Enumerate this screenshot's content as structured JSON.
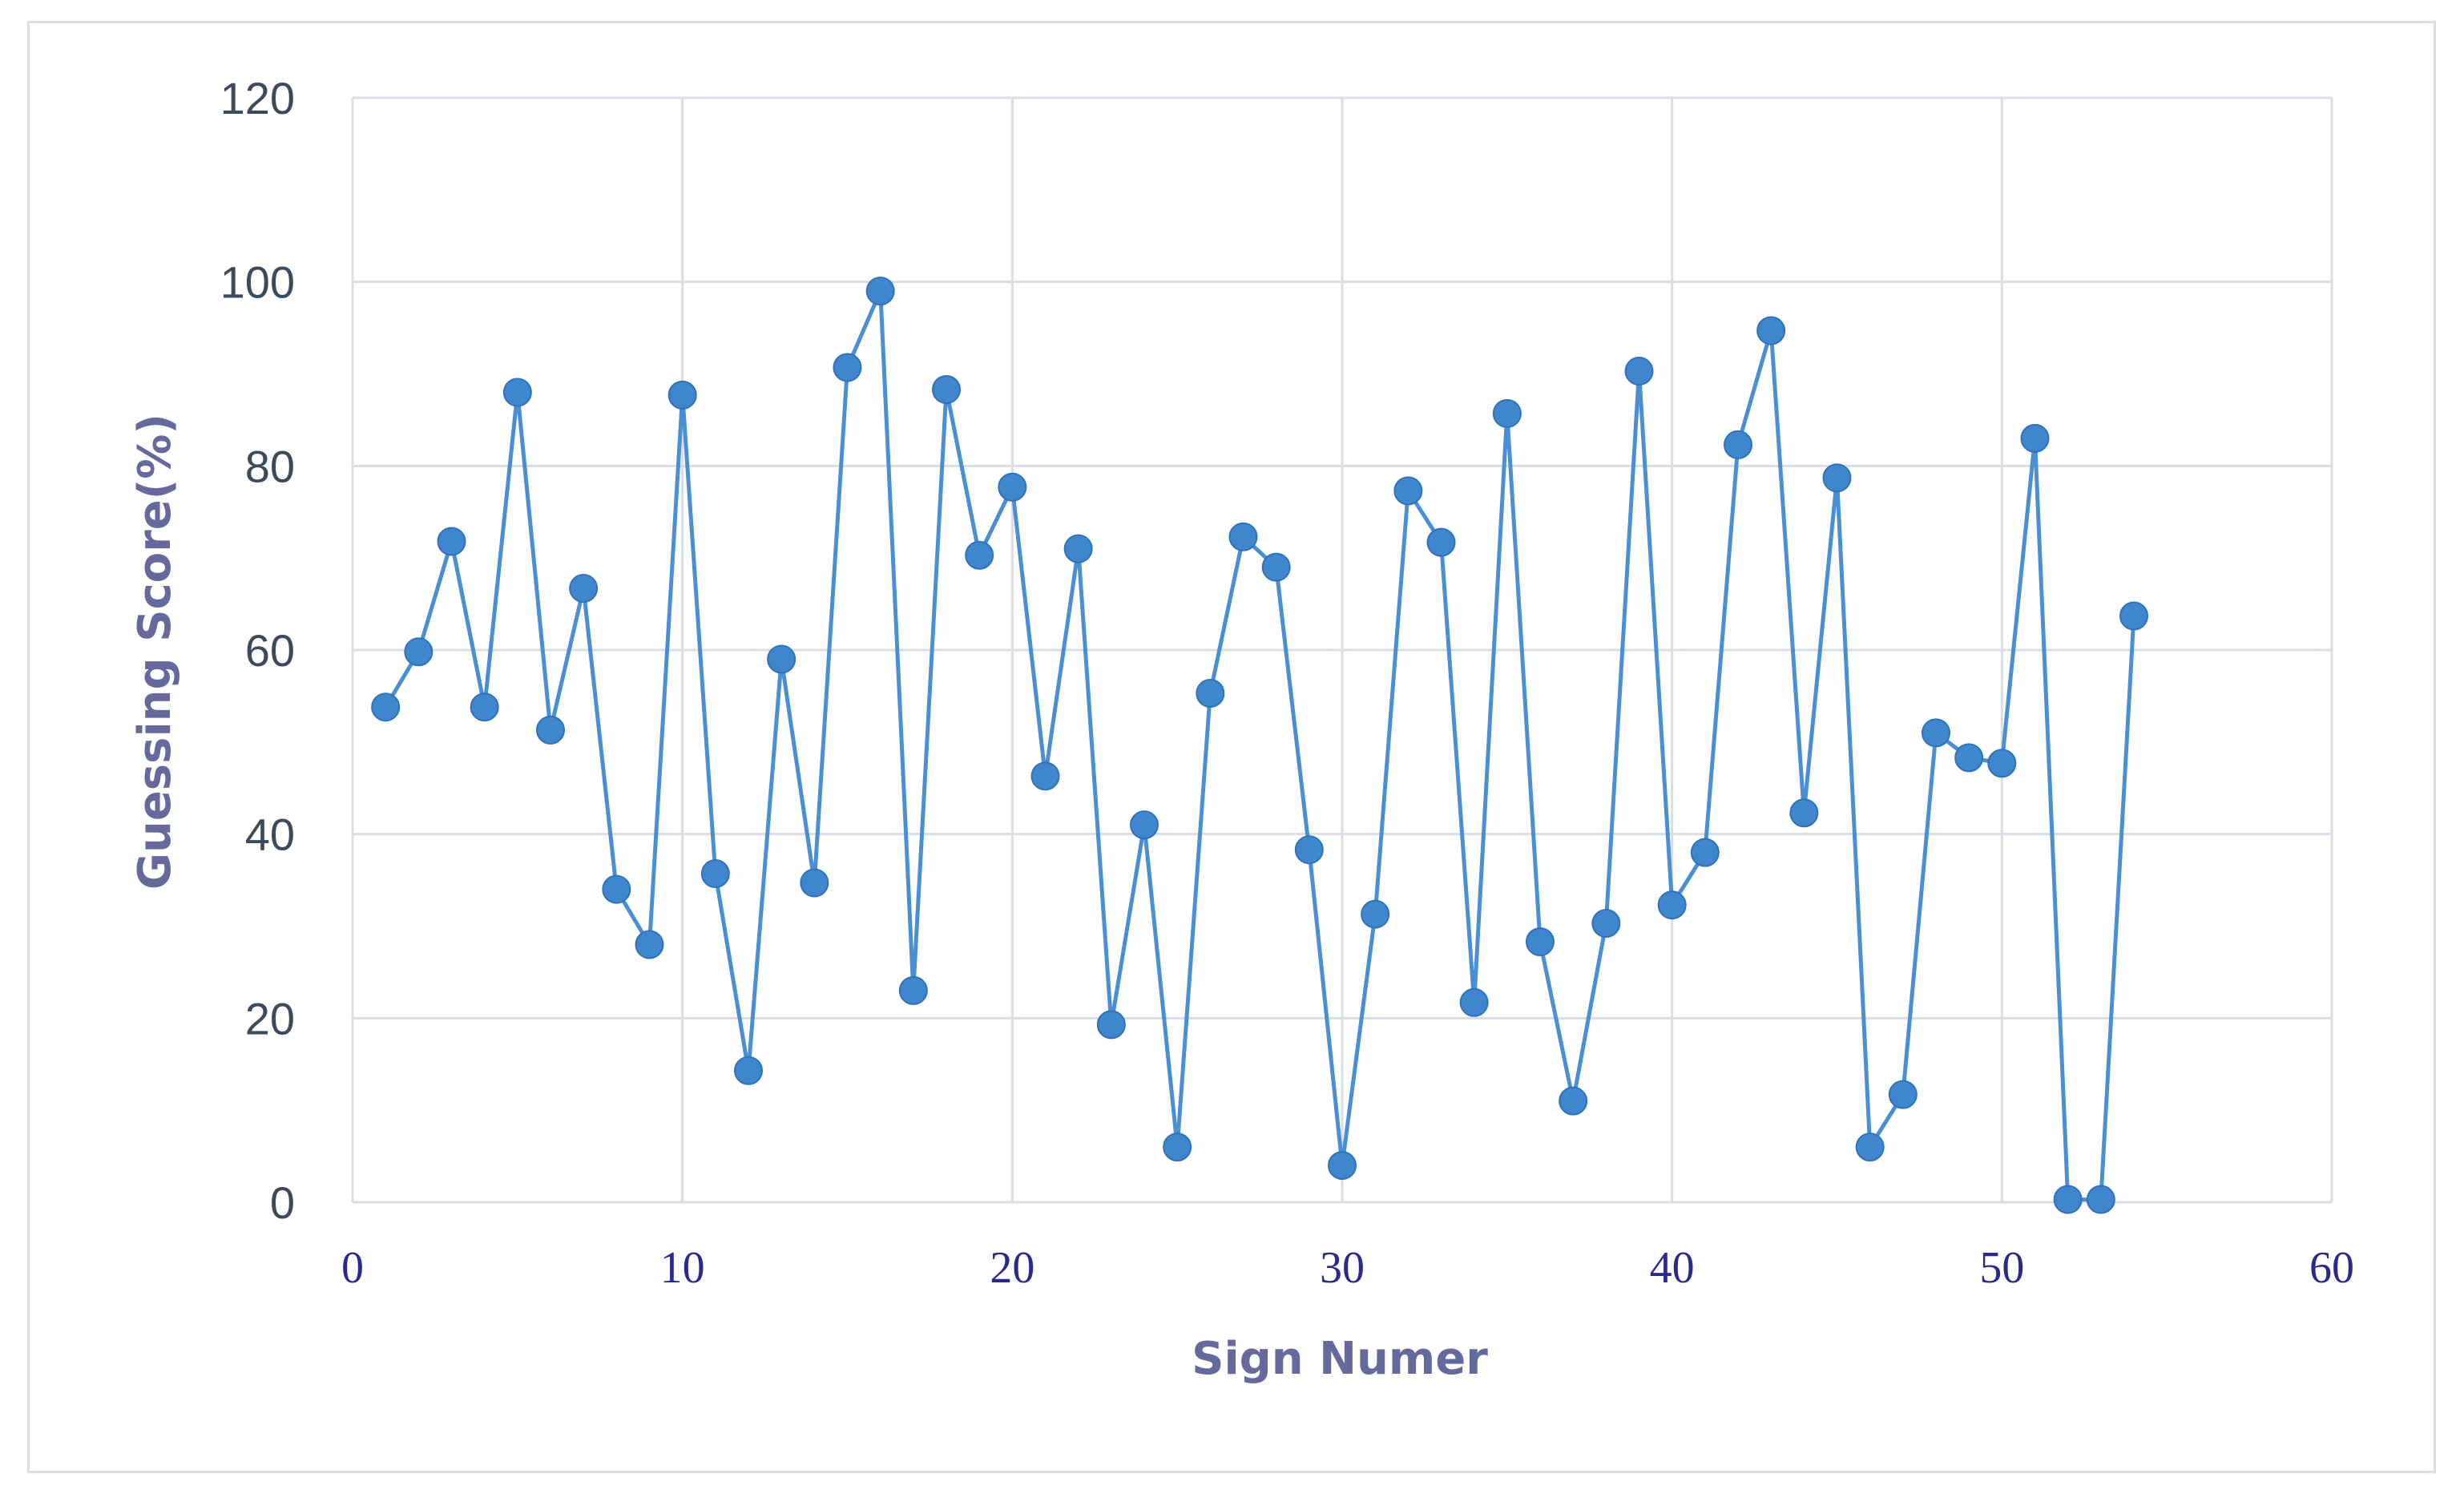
{
  "chart_data": {
    "type": "line",
    "xlabel": "Sign Numer",
    "ylabel": "Guessing  Score(%)",
    "xlim": [
      0,
      60
    ],
    "ylim": [
      0,
      120
    ],
    "xticks": [
      0,
      10,
      20,
      30,
      40,
      50,
      60
    ],
    "yticks": [
      0,
      20,
      40,
      60,
      80,
      100,
      120
    ],
    "grid": true,
    "legend": "none",
    "markers": true,
    "colors": {
      "series": "#4a8fd4",
      "marker": "#3f86cf",
      "grid": "#d9dde4",
      "ytick": "#3b4a5c",
      "xtick": "#2a2a8c",
      "axis_title": "#656a9c"
    },
    "series": [
      {
        "x": [
          1,
          2,
          3,
          4,
          5,
          6,
          7,
          8,
          9,
          10,
          11,
          12,
          13,
          14,
          15,
          16,
          17,
          18,
          19,
          20,
          21,
          22,
          23,
          24,
          25,
          26,
          27,
          28,
          29,
          30,
          31,
          32,
          33,
          34,
          35,
          36,
          37,
          38,
          39,
          40,
          41,
          42,
          43,
          44,
          45,
          46,
          47,
          48,
          49,
          50,
          51,
          52,
          53,
          54
        ],
        "values": [
          53.8,
          59.8,
          71.8,
          53.8,
          88,
          51.3,
          66.7,
          34,
          28,
          87.7,
          35.7,
          14.3,
          59,
          34.7,
          90.7,
          99,
          23,
          88.3,
          70.3,
          77.7,
          46.3,
          71,
          19.3,
          41,
          6,
          55.3,
          72.3,
          69,
          38.3,
          4,
          31.3,
          77.3,
          71.7,
          21.7,
          85.7,
          28.3,
          11,
          30.3,
          90.3,
          32.3,
          38,
          82.3,
          94.7,
          42.3,
          78.7,
          6,
          11.7,
          51,
          48.3,
          47.7,
          83,
          0.3,
          0.3,
          63.7
        ]
      }
    ]
  }
}
